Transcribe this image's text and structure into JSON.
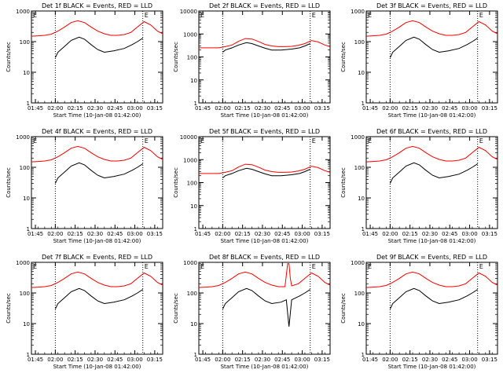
{
  "common": {
    "ylabel": "Counts/sec",
    "xlabel": "Start Time (10-Jan-08 01:42:00)",
    "xticks": [
      "01:45",
      "02:00",
      "02:15",
      "02:30",
      "02:45",
      "03:00",
      "03:15"
    ],
    "yticks": [
      "1",
      "10",
      "100",
      "1000"
    ],
    "corner_mark": "E",
    "colors": {
      "events": "#000000",
      "lld": "#ff0000",
      "axes": "#000000"
    }
  },
  "chart_data": [
    {
      "type": "line",
      "title": "Det 1f BLACK = Events, RED = LLD",
      "x_unit": "minutes since start time",
      "x_range": [
        0,
        99
      ],
      "ylim": [
        1,
        1000
      ],
      "yscale": "log",
      "dotted_lines_x": [
        18,
        84
      ],
      "series": [
        {
          "name": "Events",
          "x": [
            18,
            20,
            25,
            30,
            36,
            40,
            45,
            50,
            55,
            62,
            70,
            76,
            80,
            84
          ],
          "y": [
            30,
            45,
            70,
            110,
            140,
            120,
            80,
            55,
            45,
            50,
            60,
            80,
            100,
            130
          ]
        },
        {
          "name": "LLD",
          "x": [
            0,
            5,
            10,
            15,
            20,
            25,
            30,
            35,
            40,
            45,
            50,
            55,
            60,
            65,
            70,
            75,
            80,
            85,
            90,
            95,
            99
          ],
          "y": [
            150,
            155,
            160,
            175,
            220,
            300,
            420,
            480,
            420,
            300,
            220,
            180,
            160,
            160,
            170,
            200,
            300,
            450,
            350,
            220,
            180
          ]
        }
      ]
    },
    {
      "type": "line",
      "title": "Det 2f BLACK = Events, RED = LLD",
      "x_unit": "minutes since start time",
      "x_range": [
        0,
        99
      ],
      "ylim": [
        1,
        10000
      ],
      "yscale": "log",
      "dotted_lines_x": [
        18,
        84
      ],
      "series": [
        {
          "name": "Events",
          "x": [
            18,
            20,
            25,
            30,
            36,
            40,
            45,
            50,
            55,
            62,
            70,
            76,
            80,
            84
          ],
          "y": [
            160,
            200,
            250,
            330,
            420,
            380,
            300,
            240,
            200,
            200,
            220,
            250,
            300,
            380
          ]
        },
        {
          "name": "LLD",
          "x": [
            0,
            5,
            10,
            15,
            20,
            25,
            30,
            35,
            40,
            45,
            50,
            55,
            60,
            65,
            70,
            75,
            80,
            85,
            90,
            95,
            99
          ],
          "y": [
            250,
            250,
            250,
            250,
            280,
            330,
            480,
            630,
            600,
            470,
            350,
            300,
            280,
            280,
            290,
            320,
            380,
            520,
            450,
            330,
            280
          ]
        }
      ]
    },
    {
      "type": "line",
      "title": "Det 3f BLACK = Events, RED = LLD",
      "x_unit": "minutes since start time",
      "x_range": [
        0,
        99
      ],
      "ylim": [
        1,
        1000
      ],
      "yscale": "log",
      "dotted_lines_x": [
        18,
        84
      ],
      "series": [
        {
          "name": "Events",
          "x": [
            18,
            20,
            25,
            30,
            36,
            40,
            45,
            50,
            55,
            62,
            70,
            76,
            80,
            84
          ],
          "y": [
            30,
            45,
            70,
            110,
            140,
            120,
            80,
            55,
            45,
            50,
            60,
            80,
            100,
            130
          ]
        },
        {
          "name": "LLD",
          "x": [
            0,
            5,
            10,
            15,
            20,
            25,
            30,
            35,
            40,
            45,
            50,
            55,
            60,
            65,
            70,
            75,
            80,
            85,
            90,
            95,
            99
          ],
          "y": [
            150,
            155,
            160,
            175,
            220,
            300,
            420,
            480,
            420,
            300,
            220,
            180,
            160,
            160,
            170,
            200,
            300,
            450,
            350,
            220,
            180
          ]
        }
      ]
    },
    {
      "type": "line",
      "title": "Det 4f BLACK = Events, RED = LLD",
      "x_unit": "minutes since start time",
      "x_range": [
        0,
        99
      ],
      "ylim": [
        1,
        1000
      ],
      "yscale": "log",
      "dotted_lines_x": [
        18,
        84
      ],
      "series": [
        {
          "name": "Events",
          "x": [
            18,
            20,
            25,
            30,
            36,
            40,
            45,
            50,
            55,
            62,
            70,
            76,
            80,
            84
          ],
          "y": [
            30,
            45,
            70,
            110,
            140,
            120,
            80,
            55,
            45,
            50,
            60,
            80,
            100,
            130
          ]
        },
        {
          "name": "LLD",
          "x": [
            0,
            5,
            10,
            15,
            20,
            25,
            30,
            35,
            40,
            45,
            50,
            55,
            60,
            65,
            70,
            75,
            80,
            85,
            90,
            95,
            99
          ],
          "y": [
            150,
            155,
            160,
            175,
            220,
            300,
            420,
            480,
            420,
            300,
            220,
            180,
            160,
            160,
            170,
            200,
            300,
            450,
            350,
            220,
            180
          ]
        }
      ]
    },
    {
      "type": "line",
      "title": "Det 5f BLACK = Events, RED = LLD",
      "x_unit": "minutes since start time",
      "x_range": [
        0,
        99
      ],
      "ylim": [
        1,
        10000
      ],
      "yscale": "log",
      "dotted_lines_x": [
        18,
        84
      ],
      "series": [
        {
          "name": "Events",
          "x": [
            18,
            20,
            25,
            30,
            36,
            40,
            45,
            50,
            55,
            62,
            70,
            76,
            80,
            84
          ],
          "y": [
            160,
            200,
            250,
            330,
            420,
            380,
            300,
            240,
            200,
            200,
            220,
            250,
            300,
            380
          ]
        },
        {
          "name": "LLD",
          "x": [
            0,
            5,
            10,
            15,
            20,
            25,
            30,
            35,
            40,
            45,
            50,
            55,
            60,
            65,
            70,
            75,
            80,
            85,
            90,
            95,
            99
          ],
          "y": [
            250,
            250,
            250,
            250,
            280,
            330,
            480,
            630,
            600,
            470,
            350,
            300,
            280,
            280,
            290,
            320,
            380,
            520,
            450,
            330,
            280
          ]
        }
      ]
    },
    {
      "type": "line",
      "title": "Det 6f BLACK = Events, RED = LLD",
      "x_unit": "minutes since start time",
      "x_range": [
        0,
        99
      ],
      "ylim": [
        1,
        1000
      ],
      "yscale": "log",
      "dotted_lines_x": [
        18,
        84
      ],
      "series": [
        {
          "name": "Events",
          "x": [
            18,
            20,
            25,
            30,
            36,
            40,
            45,
            50,
            55,
            62,
            70,
            76,
            80,
            84
          ],
          "y": [
            30,
            45,
            70,
            110,
            140,
            120,
            80,
            55,
            45,
            50,
            60,
            80,
            100,
            130
          ]
        },
        {
          "name": "LLD",
          "x": [
            0,
            5,
            10,
            15,
            20,
            25,
            30,
            35,
            40,
            45,
            50,
            55,
            60,
            65,
            70,
            75,
            80,
            85,
            90,
            95,
            99
          ],
          "y": [
            150,
            155,
            160,
            175,
            220,
            300,
            420,
            480,
            420,
            300,
            220,
            180,
            160,
            160,
            170,
            200,
            300,
            450,
            350,
            220,
            180
          ]
        }
      ]
    },
    {
      "type": "line",
      "title": "Det 7f BLACK = Events, RED = LLD",
      "x_unit": "minutes since start time",
      "x_range": [
        0,
        99
      ],
      "ylim": [
        1,
        1000
      ],
      "yscale": "log",
      "dotted_lines_x": [
        18,
        84
      ],
      "series": [
        {
          "name": "Events",
          "x": [
            18,
            20,
            25,
            30,
            36,
            40,
            45,
            50,
            55,
            62,
            70,
            76,
            80,
            84
          ],
          "y": [
            30,
            45,
            70,
            110,
            140,
            120,
            80,
            55,
            45,
            50,
            60,
            80,
            100,
            130
          ]
        },
        {
          "name": "LLD",
          "x": [
            0,
            5,
            10,
            15,
            20,
            25,
            30,
            35,
            40,
            45,
            50,
            55,
            60,
            65,
            70,
            75,
            80,
            85,
            90,
            95,
            99
          ],
          "y": [
            150,
            155,
            160,
            175,
            220,
            300,
            420,
            480,
            420,
            300,
            220,
            180,
            160,
            160,
            170,
            200,
            300,
            450,
            350,
            220,
            180
          ]
        }
      ]
    },
    {
      "type": "line",
      "title": "Det 8f BLACK = Events, RED = LLD",
      "x_unit": "minutes since start time",
      "x_range": [
        0,
        99
      ],
      "ylim": [
        1,
        1000
      ],
      "yscale": "log",
      "dotted_lines_x": [
        18,
        84
      ],
      "series": [
        {
          "name": "Events",
          "x": [
            18,
            20,
            25,
            30,
            36,
            40,
            45,
            50,
            55,
            62,
            66,
            68,
            70,
            76,
            80,
            84
          ],
          "y": [
            30,
            45,
            70,
            110,
            140,
            120,
            80,
            55,
            45,
            50,
            60,
            8,
            60,
            80,
            100,
            130
          ]
        },
        {
          "name": "LLD",
          "x": [
            0,
            5,
            10,
            15,
            20,
            25,
            30,
            35,
            40,
            45,
            50,
            55,
            60,
            65,
            67,
            68,
            69,
            70,
            75,
            80,
            85,
            90,
            95,
            99
          ],
          "y": [
            150,
            155,
            160,
            175,
            220,
            300,
            420,
            480,
            420,
            300,
            220,
            180,
            160,
            160,
            900,
            900,
            300,
            170,
            200,
            300,
            450,
            350,
            220,
            180
          ]
        }
      ]
    },
    {
      "type": "line",
      "title": "Det 9f BLACK = Events, RED = LLD",
      "x_unit": "minutes since start time",
      "x_range": [
        0,
        99
      ],
      "ylim": [
        1,
        1000
      ],
      "yscale": "log",
      "dotted_lines_x": [
        18,
        84
      ],
      "series": [
        {
          "name": "Events",
          "x": [
            18,
            20,
            25,
            30,
            36,
            40,
            45,
            50,
            55,
            62,
            70,
            76,
            80,
            84
          ],
          "y": [
            30,
            45,
            70,
            110,
            140,
            120,
            80,
            55,
            45,
            50,
            60,
            80,
            100,
            130
          ]
        },
        {
          "name": "LLD",
          "x": [
            0,
            5,
            10,
            15,
            20,
            25,
            30,
            35,
            40,
            45,
            50,
            55,
            60,
            65,
            70,
            75,
            80,
            85,
            90,
            95,
            99
          ],
          "y": [
            150,
            155,
            160,
            175,
            220,
            300,
            420,
            480,
            420,
            300,
            220,
            180,
            160,
            160,
            170,
            200,
            300,
            450,
            350,
            220,
            180
          ]
        }
      ]
    }
  ]
}
